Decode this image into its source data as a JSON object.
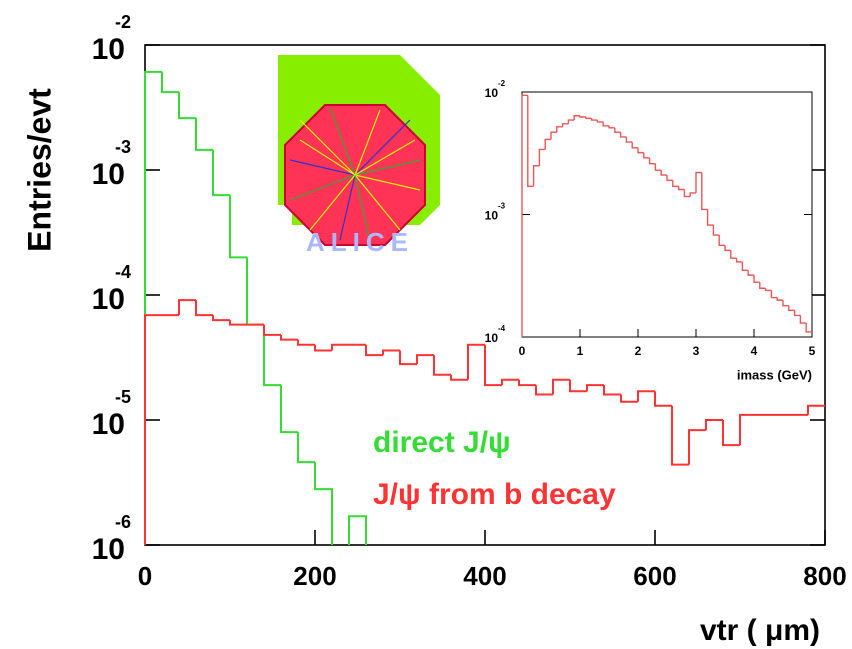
{
  "chart_data": [
    {
      "type": "histogram",
      "x_label": "vtr ( μm)",
      "y_label": "Entries/evt",
      "bins": [
        0,
        20,
        40,
        60,
        80,
        100,
        120,
        140,
        160,
        180,
        200,
        220,
        240,
        260,
        280,
        300,
        320,
        340,
        360,
        380,
        400,
        420,
        440,
        460,
        480,
        500,
        520,
        540,
        560,
        580,
        600,
        620,
        640,
        660,
        680,
        700,
        720,
        740,
        760,
        780,
        800
      ],
      "series": [
        {
          "name": "direct J/ψ",
          "color": "#33dd33",
          "values": [
            0.0061,
            0.0042,
            0.0026,
            0.00145,
            0.00063,
            0.0002,
            5.8e-05,
            1.9e-05,
            8e-06,
            4.6e-06,
            2.8e-06,
            null,
            1.7e-06,
            null,
            null,
            null,
            null,
            null,
            null,
            null,
            null,
            null,
            null,
            null,
            null,
            null,
            null,
            null,
            null,
            null,
            null,
            null,
            null,
            null,
            null,
            null,
            null,
            null,
            null,
            null
          ]
        },
        {
          "name": "J/ψ from b decay",
          "color": "#ff3333",
          "values": [
            6.9e-05,
            6.9e-05,
            9.1e-05,
            6.9e-05,
            6.3e-05,
            5.8e-05,
            5.8e-05,
            4.8e-05,
            4.4e-05,
            4e-05,
            3.6e-05,
            4e-05,
            4e-05,
            3.3e-05,
            3.6e-05,
            2.8e-05,
            3.3e-05,
            2.3e-05,
            2.1e-05,
            4e-05,
            1.9e-05,
            2.1e-05,
            1.9e-05,
            1.6e-05,
            2.1e-05,
            1.7e-05,
            1.9e-05,
            1.6e-05,
            1.4e-05,
            1.7e-05,
            1.3e-05,
            4.4e-06,
            8.3e-06,
            1e-05,
            6.3e-06,
            1.1e-05,
            1.1e-05,
            1.1e-05,
            1.1e-05,
            1.3e-05
          ]
        }
      ],
      "xlim": [
        0,
        800
      ],
      "xticks": [
        0,
        200,
        400,
        600,
        800
      ],
      "ylim": [
        1e-06,
        0.01
      ],
      "yticks": [
        {
          "value": 0.01,
          "label": "10",
          "exponent": "-2"
        },
        {
          "value": 0.001,
          "label": "10",
          "exponent": "-3"
        },
        {
          "value": 0.0001,
          "label": "10",
          "exponent": "-4"
        },
        {
          "value": 1e-05,
          "label": "10",
          "exponent": "-5"
        },
        {
          "value": 1e-06,
          "label": "10",
          "exponent": "-6"
        }
      ],
      "log_y": true,
      "legend": "center"
    },
    {
      "type": "histogram",
      "x_label": "imass (GeV)",
      "bins": [
        0,
        0.1,
        0.2,
        0.3,
        0.4,
        0.5,
        0.6,
        0.7,
        0.8,
        0.9,
        1,
        1.1,
        1.2,
        1.3,
        1.4,
        1.5,
        1.6,
        1.7,
        1.8,
        1.9,
        2,
        2.1,
        2.2,
        2.3,
        2.4,
        2.5,
        2.6,
        2.7,
        2.8,
        2.9,
        3,
        3.1,
        3.2,
        3.3,
        3.4,
        3.5,
        3.6,
        3.7,
        3.8,
        3.9,
        4,
        4.1,
        4.2,
        4.3,
        4.4,
        4.5,
        4.6,
        4.7,
        4.8,
        4.9,
        5
      ],
      "series": [
        {
          "color": "#ee5555",
          "values": [
            0.0094,
            0.0017,
            0.0025,
            0.0034,
            0.0041,
            0.0047,
            0.0052,
            0.0055,
            0.0059,
            0.0064,
            0.00625,
            0.0061,
            0.0059,
            0.0057,
            0.0053,
            0.0051,
            0.0047,
            0.0043,
            0.0039,
            0.0035,
            0.0032,
            0.0029,
            0.0026,
            0.0023,
            0.0021,
            0.0019,
            0.0017,
            0.0016,
            0.0014,
            0.0015,
            0.0022,
            0.0011,
            0.00082,
            0.00068,
            0.00056,
            0.00051,
            0.00044,
            0.00041,
            0.00035,
            0.00032,
            0.00028,
            0.00025,
            0.00024,
            0.00021,
            0.0002,
            0.00018,
            0.000165,
            0.00015,
            0.00013,
            0.00011
          ]
        }
      ],
      "xlim": [
        0,
        5
      ],
      "xticks": [
        0,
        1,
        2,
        3,
        4,
        5
      ],
      "ylim": [
        0.0001,
        0.01
      ],
      "yticks": [
        {
          "value": 0.01,
          "label": "10",
          "exponent": "-2"
        },
        {
          "value": 0.001,
          "label": "10",
          "exponent": "-3"
        },
        {
          "value": 0.0001,
          "label": "10",
          "exponent": "-4"
        }
      ],
      "log_y": true
    }
  ],
  "logo_text": "ALICE"
}
